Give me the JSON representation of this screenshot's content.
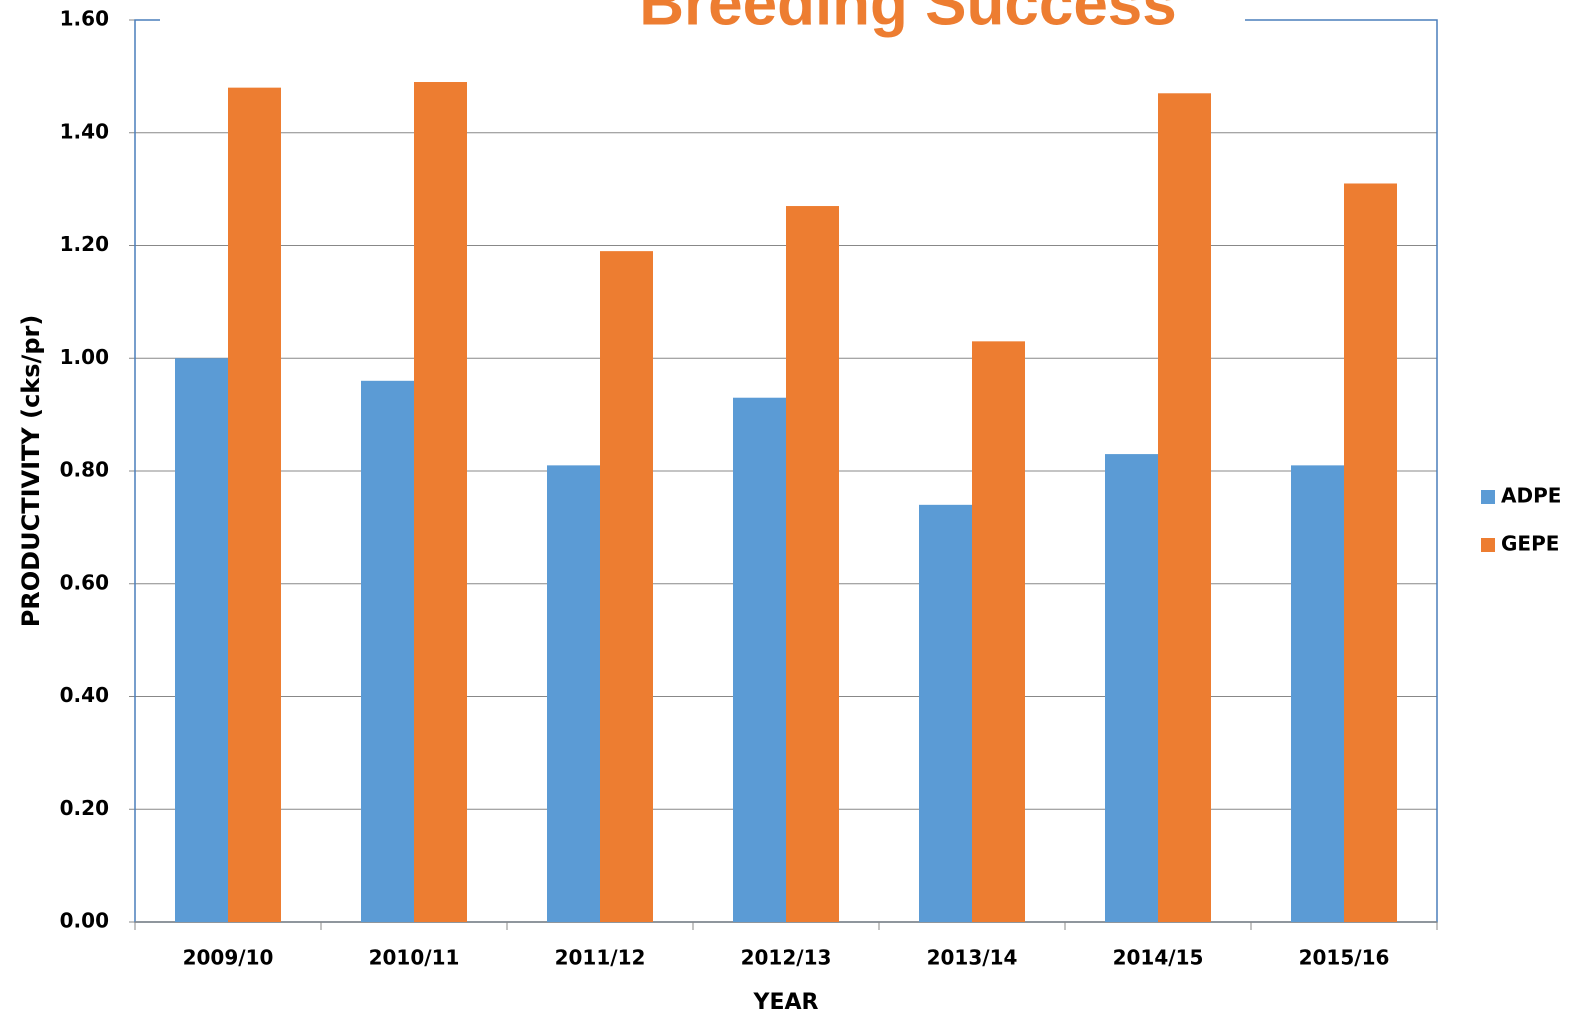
{
  "chart_data": {
    "type": "bar",
    "title": "Breeding Success",
    "x_label": "YEAR",
    "y_label": "PRODUCTIVITY (cks/pr)",
    "categories": [
      "2009/10",
      "2010/11",
      "2011/12",
      "2012/13",
      "2013/14",
      "2014/15",
      "2015/16"
    ],
    "series": [
      {
        "name": "ADPE",
        "color": "#5b9bd5",
        "values": [
          1.0,
          0.96,
          0.81,
          0.93,
          0.74,
          0.83,
          0.81
        ]
      },
      {
        "name": "GEPE",
        "color": "#ed7d31",
        "values": [
          1.48,
          1.49,
          1.19,
          1.27,
          1.03,
          1.47,
          1.31
        ]
      }
    ],
    "ylim": [
      0,
      1.6
    ],
    "yticks": [
      {
        "value": 0,
        "label": "0.00"
      },
      {
        "value": 0.2,
        "label": "0.20"
      },
      {
        "value": 0.4,
        "label": "0.40"
      },
      {
        "value": 0.6,
        "label": "0.60"
      },
      {
        "value": 0.8,
        "label": "0.80"
      },
      {
        "value": 1.0,
        "label": "1.00"
      },
      {
        "value": 1.2,
        "label": "1.20"
      },
      {
        "value": 1.4,
        "label": "1.40"
      },
      {
        "value": 1.6,
        "label": "1.60"
      }
    ],
    "grid": true,
    "legend": "right"
  }
}
